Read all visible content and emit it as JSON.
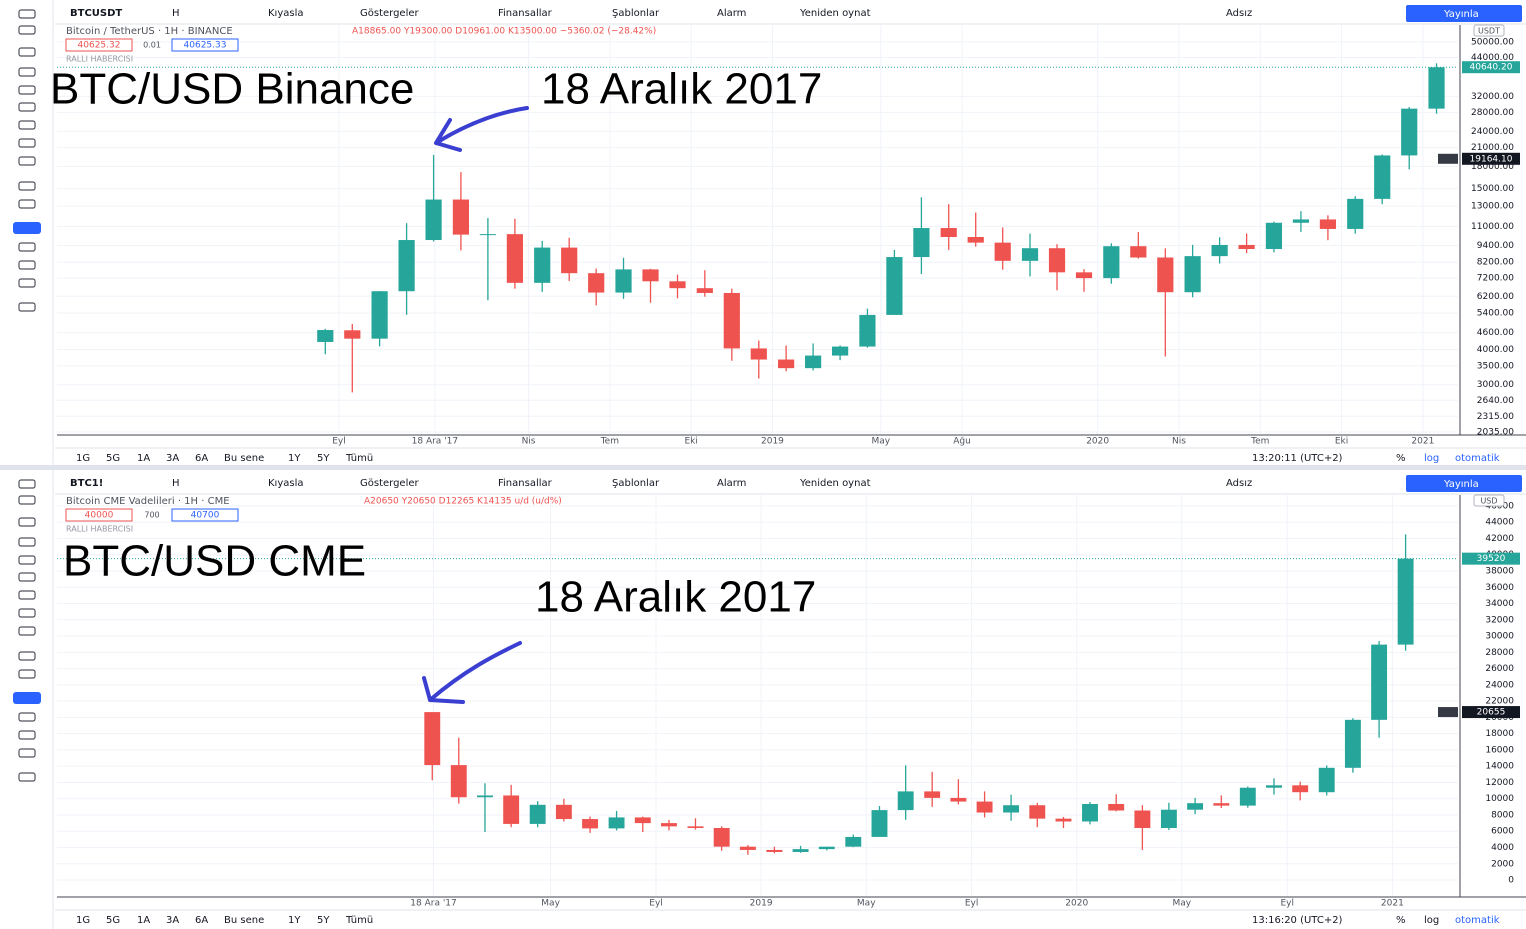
{
  "panels": [
    {
      "toolbar": {
        "symbol": "BTCUSDT",
        "interval": "H",
        "compare": "Kıyasla",
        "indicators": "Göstergeler",
        "financials": "Finansallar",
        "templates": "Şablonlar",
        "alert": "Alarm",
        "replay": "Yeniden oynat",
        "layout": "Adsız",
        "publish": "Yayınla"
      },
      "legend": {
        "title": "Bitcoin / TetherUS · 1H · BINANCE",
        "ohlc": "A18865.00 Y19300.00 D10961.00 K13500.00 −5360.02 (−28.42%)",
        "bid": "40625.32",
        "spread": "0.01",
        "ask": "40625.33",
        "indicator": "RALLI HABERCISI"
      },
      "annotations": {
        "title": "BTC/USD Binance",
        "date": "18 Aralık 2017"
      },
      "chart_data": {
        "type": "candlestick",
        "currency": "USDT",
        "log_scale": true,
        "grid": true,
        "up_color": "#26a69a",
        "down_color": "#ef5350",
        "x": [
          2017.625,
          2017.708,
          2017.792,
          2017.875,
          2017.958,
          2018.042,
          2018.125,
          2018.208,
          2018.292,
          2018.375,
          2018.458,
          2018.542,
          2018.625,
          2018.708,
          2018.792,
          2018.875,
          2018.958,
          2019.042,
          2019.125,
          2019.208,
          2019.292,
          2019.375,
          2019.458,
          2019.542,
          2019.625,
          2019.708,
          2019.792,
          2019.875,
          2019.958,
          2020.042,
          2020.125,
          2020.208,
          2020.292,
          2020.375,
          2020.458,
          2020.542,
          2020.625,
          2020.708,
          2020.792,
          2020.875,
          2020.958,
          2021.042
        ],
        "open": [
          4261,
          4689,
          4378,
          6463,
          9838,
          13716,
          10285,
          10326,
          6923,
          9246,
          7494,
          6391,
          7730,
          7011,
          6626,
          6371,
          4041,
          3689,
          3437,
          3811,
          4103,
          5320,
          8555,
          10855,
          10085,
          9630,
          8293,
          9199,
          7546,
          7195,
          9352,
          8523,
          6410,
          8620,
          9448,
          9138,
          11335,
          11649,
          10776,
          13791,
          19700,
          28923
        ],
        "high": [
          4745,
          4939,
          6470,
          11300,
          19798,
          17176,
          11786,
          11710,
          9759,
          10020,
          7786,
          8507,
          7770,
          7410,
          7680,
          6600,
          4313,
          4140,
          4210,
          4140,
          5600,
          9074,
          13970,
          13200,
          12325,
          10905,
          10370,
          9505,
          7750,
          9578,
          10500,
          9188,
          9460,
          10067,
          10380,
          11444,
          12468,
          12050,
          14100,
          19863,
          29300,
          41950
        ],
        "low": [
          3850,
          2817,
          4110,
          5325,
          9722,
          9035,
          6000,
          6600,
          6430,
          7032,
          5755,
          6070,
          5880,
          6100,
          6180,
          3652,
          3156,
          3349,
          3373,
          3670,
          4067,
          5350,
          7444,
          9071,
          9320,
          7710,
          7300,
          6515,
          6435,
          6871,
          8450,
          3782,
          6150,
          8117,
          8833,
          8893,
          10518,
          9825,
          10370,
          13195,
          17572,
          27734
        ],
        "close": [
          4700,
          4378,
          6463,
          9838,
          13716,
          10285,
          10326,
          6923,
          9246,
          7494,
          6391,
          7730,
          7011,
          6626,
          6371,
          4041,
          3689,
          3437,
          3811,
          4103,
          5320,
          8555,
          10855,
          10085,
          9630,
          8293,
          9199,
          7546,
          7195,
          9352,
          8523,
          6410,
          8620,
          9448,
          9138,
          11335,
          11649,
          10776,
          13791,
          19700,
          28923,
          40625
        ],
        "xlim": [
          2016.8,
          2021.108
        ],
        "xticks": [
          {
            "value": 2017.667,
            "label": "Eyl"
          },
          {
            "value": 2017.962,
            "label": "18 Ara '17"
          },
          {
            "value": 2018.25,
            "label": "Nis"
          },
          {
            "value": 2018.5,
            "label": "Tem"
          },
          {
            "value": 2018.75,
            "label": "Eki"
          },
          2019,
          {
            "value": 2019.333,
            "label": "May"
          },
          {
            "value": 2019.583,
            "label": "Ağu"
          },
          2020,
          {
            "value": 2020.25,
            "label": "Nis"
          },
          {
            "value": 2020.5,
            "label": "Tem"
          },
          {
            "value": 2020.75,
            "label": "Eki"
          },
          2021
        ],
        "ylim": [
          2035,
          58900
        ],
        "yticks": [
          {
            "value": 50000,
            "label": "50000.00"
          },
          {
            "value": 44000,
            "label": "44000.00"
          },
          {
            "value": 32000,
            "label": "32000.00"
          },
          {
            "value": 28000,
            "label": "28000.00"
          },
          {
            "value": 24000,
            "label": "24000.00"
          },
          {
            "value": 21000,
            "label": "21000.00"
          },
          {
            "value": 18000,
            "label": "18000.00"
          },
          {
            "value": 15000,
            "label": "15000.00"
          },
          {
            "value": 13000,
            "label": "13000.00"
          },
          {
            "value": 11000,
            "label": "11000.00"
          },
          {
            "value": 9400,
            "label": "9400.00"
          },
          {
            "value": 8200,
            "label": "8200.00"
          },
          {
            "value": 7200,
            "label": "7200.00"
          },
          {
            "value": 6200,
            "label": "6200.00"
          },
          {
            "value": 5400,
            "label": "5400.00"
          },
          {
            "value": 4600,
            "label": "4600.00"
          },
          {
            "value": 4000,
            "label": "4000.00"
          },
          {
            "value": 3500,
            "label": "3500.00"
          },
          {
            "value": 3000,
            "label": "3000.00"
          },
          {
            "value": 2640,
            "label": "2640.00"
          },
          {
            "value": 2315,
            "label": "2315.00"
          },
          {
            "value": 2035,
            "label": "2035.00"
          }
        ],
        "last_price": {
          "value": 40640.2,
          "label": "40640.20"
        },
        "crosshair": {
          "value": 19164.1,
          "label": "19164.10"
        }
      },
      "bottom_bar": {
        "ranges": [
          "1G",
          "5G",
          "1A",
          "3A",
          "6A",
          "Bu sene",
          "1Y",
          "5Y",
          "Tümü"
        ],
        "time": "13:20:11 (UTC+2)",
        "percent": "%",
        "log": "log",
        "auto": "otomatik"
      }
    },
    {
      "toolbar": {
        "symbol": "BTC1!",
        "interval": "H",
        "compare": "Kıyasla",
        "indicators": "Göstergeler",
        "financials": "Finansallar",
        "templates": "Şablonlar",
        "alert": "Alarm",
        "replay": "Yeniden oynat",
        "layout": "Adsız",
        "publish": "Yayınla"
      },
      "legend": {
        "title": "Bitcoin CME Vadelileri · 1H · CME",
        "ohlc": "A20650 Y20650 D12265 K14135 u/d (u/d%)",
        "bid": "40000",
        "spread": "700",
        "ask": "40700",
        "indicator": "RALLI HABERCISI"
      },
      "annotations": {
        "title": "BTC/USD CME",
        "date": "18 Aralık 2017"
      },
      "chart_data": {
        "type": "candlestick",
        "currency": "USD",
        "log_scale": false,
        "grid": true,
        "up_color": "#26a69a",
        "down_color": "#ef5350",
        "x": [
          2017.958,
          2018.042,
          2018.125,
          2018.208,
          2018.292,
          2018.375,
          2018.458,
          2018.542,
          2018.625,
          2018.708,
          2018.792,
          2018.875,
          2018.958,
          2019.042,
          2019.125,
          2019.208,
          2019.292,
          2019.375,
          2019.458,
          2019.542,
          2019.625,
          2019.708,
          2019.792,
          2019.875,
          2019.958,
          2020.042,
          2020.125,
          2020.208,
          2020.292,
          2020.375,
          2020.458,
          2020.542,
          2020.625,
          2020.708,
          2020.792,
          2020.875,
          2020.958,
          2021.042
        ],
        "open": [
          20650,
          14135,
          10180,
          10400,
          6900,
          9250,
          7500,
          6350,
          7700,
          7000,
          6600,
          6400,
          4100,
          3700,
          3450,
          3800,
          4100,
          5300,
          8600,
          10900,
          10100,
          9650,
          8300,
          9200,
          7550,
          7200,
          9350,
          8550,
          6400,
          8650,
          9450,
          9150,
          11350,
          11650,
          10800,
          13800,
          19700,
          28950
        ],
        "high": [
          20650,
          17500,
          11900,
          11700,
          9700,
          10000,
          7800,
          8500,
          7800,
          7400,
          7600,
          6600,
          4300,
          4100,
          4200,
          4100,
          5600,
          9100,
          14100,
          13300,
          12400,
          10900,
          10500,
          9500,
          7750,
          9600,
          10550,
          9200,
          9500,
          10100,
          10400,
          11500,
          12500,
          12100,
          14100,
          19900,
          29400,
          42500
        ],
        "low": [
          12265,
          9400,
          5900,
          6500,
          6500,
          7200,
          5800,
          6100,
          5900,
          6100,
          6200,
          3600,
          3100,
          3300,
          3350,
          3650,
          4050,
          5300,
          7400,
          9000,
          9300,
          7700,
          7300,
          6500,
          6400,
          6850,
          8450,
          3700,
          6150,
          8100,
          8850,
          8900,
          10500,
          9800,
          10400,
          13200,
          17500,
          28200
        ],
        "close": [
          14135,
          10180,
          10400,
          6900,
          9250,
          7500,
          6350,
          7700,
          7000,
          6600,
          6400,
          4100,
          3700,
          3450,
          3800,
          4100,
          5300,
          8600,
          10900,
          10100,
          9650,
          8300,
          9200,
          7550,
          7200,
          9350,
          8550,
          6400,
          8650,
          9450,
          9150,
          11350,
          11650,
          10800,
          13800,
          19700,
          28950,
          39520
        ],
        "xlim": [
          2016.769,
          2021.208
        ],
        "xticks": [
          {
            "value": 2017.962,
            "label": "18 Ara '17"
          },
          {
            "value": 2018.333,
            "label": "May"
          },
          {
            "value": 2018.667,
            "label": "Eyl"
          },
          2019,
          {
            "value": 2019.333,
            "label": "May"
          },
          {
            "value": 2019.667,
            "label": "Eyl"
          },
          2020,
          {
            "value": 2020.333,
            "label": "May"
          },
          {
            "value": 2020.667,
            "label": "Eyl"
          },
          2021
        ],
        "ylim": [
          -1717,
          47470
        ],
        "yticks": [
          0,
          2000,
          4000,
          6000,
          8000,
          10000,
          12000,
          14000,
          16000,
          18000,
          20000,
          22000,
          24000,
          26000,
          28000,
          30000,
          32000,
          34000,
          36000,
          38000,
          40000,
          42000,
          44000,
          46000
        ],
        "last_price": {
          "value": 39520,
          "label": "39520"
        },
        "crosshair": {
          "value": 20655,
          "label": "20655"
        }
      },
      "bottom_bar": {
        "ranges": [
          "1G",
          "5G",
          "1A",
          "3A",
          "6A",
          "Bu sene",
          "1Y",
          "5Y",
          "Tümü"
        ],
        "time": "13:16:20 (UTC+2)",
        "percent": "%",
        "log": "log",
        "auto": "otomatik"
      }
    }
  ]
}
